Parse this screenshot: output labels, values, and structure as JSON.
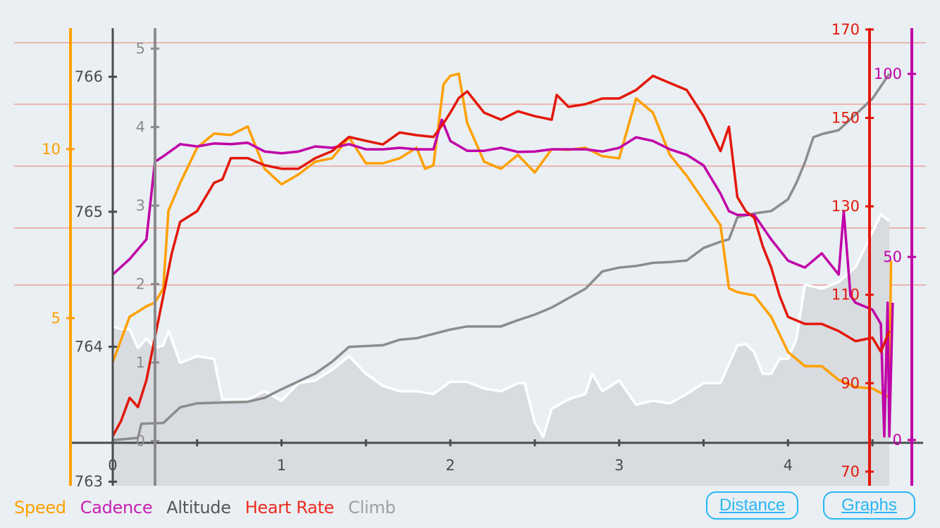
{
  "chart_data": {
    "type": "line",
    "title": "",
    "xlabel": "Distance",
    "xlim": [
      -0.25,
      4.8
    ],
    "x_ticks": [
      0,
      1,
      2,
      3,
      4
    ],
    "x_minor_step": 0.5,
    "grid": {
      "hr_zone_lines": [
        167,
        153.1,
        139.1,
        125.1,
        112.2
      ],
      "color": "#ec7a70"
    },
    "axes": {
      "speed": {
        "ylim": [
          0.04,
          13.58
        ],
        "ticks": [
          5,
          10
        ],
        "color": "#ffa000"
      },
      "altitude": {
        "ylim": [
          762.97,
          766.36
        ],
        "ticks": [
          763,
          764,
          765,
          766
        ],
        "color": "#4a4b50"
      },
      "climb": {
        "ylim": [
          -0.57,
          5.26
        ],
        "ticks": [
          0,
          1,
          2,
          3,
          4,
          5
        ],
        "color": "#8c8c8c"
      },
      "heart_rate": {
        "ylim": [
          66.8,
          170.3
        ],
        "ticks": [
          70,
          90,
          110,
          130,
          150,
          170
        ],
        "color": "#e3170a"
      },
      "cadence": {
        "ylim": [
          -12.5,
          112.5
        ],
        "ticks": [
          0,
          50,
          100
        ],
        "color": "#c000a8"
      }
    },
    "series": [
      {
        "name": "Altitude",
        "axis": "altitude",
        "style": "area",
        "color": "#ffffff",
        "fill": "#d8dbe0",
        "points": [
          [
            0,
            764.15
          ],
          [
            0.05,
            764.13
          ],
          [
            0.1,
            764.13
          ],
          [
            0.15,
            763.99
          ],
          [
            0.2,
            764.06
          ],
          [
            0.25,
            763.99
          ],
          [
            0.3,
            764.01
          ],
          [
            0.33,
            764.12
          ],
          [
            0.4,
            763.88
          ],
          [
            0.5,
            763.93
          ],
          [
            0.6,
            763.91
          ],
          [
            0.65,
            763.61
          ],
          [
            0.8,
            763.61
          ],
          [
            0.9,
            763.67
          ],
          [
            1.0,
            763.6
          ],
          [
            1.1,
            763.73
          ],
          [
            1.2,
            763.75
          ],
          [
            1.3,
            763.83
          ],
          [
            1.4,
            763.93
          ],
          [
            1.5,
            763.8
          ],
          [
            1.6,
            763.71
          ],
          [
            1.7,
            763.67
          ],
          [
            1.8,
            763.67
          ],
          [
            1.9,
            763.65
          ],
          [
            2.0,
            763.74
          ],
          [
            2.1,
            763.74
          ],
          [
            2.2,
            763.69
          ],
          [
            2.3,
            763.67
          ],
          [
            2.4,
            763.73
          ],
          [
            2.44,
            763.73
          ],
          [
            2.5,
            763.44
          ],
          [
            2.55,
            763.33
          ],
          [
            2.6,
            763.54
          ],
          [
            2.7,
            763.61
          ],
          [
            2.8,
            763.65
          ],
          [
            2.84,
            763.8
          ],
          [
            2.9,
            763.67
          ],
          [
            3.0,
            763.75
          ],
          [
            3.1,
            763.57
          ],
          [
            3.2,
            763.6
          ],
          [
            3.3,
            763.58
          ],
          [
            3.4,
            763.65
          ],
          [
            3.5,
            763.73
          ],
          [
            3.6,
            763.73
          ],
          [
            3.7,
            764.01
          ],
          [
            3.75,
            764.02
          ],
          [
            3.8,
            763.96
          ],
          [
            3.85,
            763.8
          ],
          [
            3.9,
            763.8
          ],
          [
            3.95,
            763.91
          ],
          [
            4.0,
            763.91
          ],
          [
            4.05,
            764.06
          ],
          [
            4.1,
            764.46
          ],
          [
            4.2,
            764.43
          ],
          [
            4.3,
            764.48
          ],
          [
            4.4,
            764.59
          ],
          [
            4.5,
            764.85
          ],
          [
            4.55,
            764.98
          ],
          [
            4.6,
            764.93
          ]
        ]
      },
      {
        "name": "Climb",
        "axis": "climb",
        "style": "line",
        "color": "#8c8c8c",
        "points": [
          [
            0,
            0.01
          ],
          [
            0.15,
            0.04
          ],
          [
            0.17,
            0.22
          ],
          [
            0.3,
            0.23
          ],
          [
            0.4,
            0.43
          ],
          [
            0.5,
            0.48
          ],
          [
            0.8,
            0.5
          ],
          [
            0.9,
            0.55
          ],
          [
            1.0,
            0.66
          ],
          [
            1.2,
            0.86
          ],
          [
            1.3,
            1.01
          ],
          [
            1.4,
            1.2
          ],
          [
            1.6,
            1.22
          ],
          [
            1.7,
            1.29
          ],
          [
            1.8,
            1.31
          ],
          [
            2.0,
            1.42
          ],
          [
            2.1,
            1.46
          ],
          [
            2.3,
            1.46
          ],
          [
            2.4,
            1.54
          ],
          [
            2.5,
            1.61
          ],
          [
            2.6,
            1.7
          ],
          [
            2.7,
            1.82
          ],
          [
            2.8,
            1.94
          ],
          [
            2.9,
            2.16
          ],
          [
            3.0,
            2.21
          ],
          [
            3.1,
            2.23
          ],
          [
            3.2,
            2.27
          ],
          [
            3.3,
            2.28
          ],
          [
            3.4,
            2.3
          ],
          [
            3.5,
            2.46
          ],
          [
            3.6,
            2.54
          ],
          [
            3.65,
            2.57
          ],
          [
            3.7,
            2.85
          ],
          [
            3.8,
            2.9
          ],
          [
            3.9,
            2.93
          ],
          [
            4.0,
            3.08
          ],
          [
            4.05,
            3.29
          ],
          [
            4.1,
            3.55
          ],
          [
            4.15,
            3.87
          ],
          [
            4.2,
            3.91
          ],
          [
            4.3,
            3.96
          ],
          [
            4.4,
            4.16
          ],
          [
            4.5,
            4.36
          ],
          [
            4.6,
            4.68
          ]
        ]
      },
      {
        "name": "Speed",
        "axis": "speed",
        "style": "line",
        "color": "#ffa000",
        "points": [
          [
            0,
            3.69
          ],
          [
            0.1,
            5.04
          ],
          [
            0.2,
            5.35
          ],
          [
            0.25,
            5.46
          ],
          [
            0.3,
            5.88
          ],
          [
            0.33,
            8.17
          ],
          [
            0.4,
            9.0
          ],
          [
            0.5,
            10.04
          ],
          [
            0.6,
            10.46
          ],
          [
            0.7,
            10.42
          ],
          [
            0.8,
            10.67
          ],
          [
            0.9,
            9.42
          ],
          [
            1.0,
            8.96
          ],
          [
            1.1,
            9.25
          ],
          [
            1.2,
            9.63
          ],
          [
            1.3,
            9.73
          ],
          [
            1.4,
            10.35
          ],
          [
            1.5,
            9.58
          ],
          [
            1.6,
            9.58
          ],
          [
            1.7,
            9.73
          ],
          [
            1.8,
            10.04
          ],
          [
            1.85,
            9.42
          ],
          [
            1.9,
            9.52
          ],
          [
            1.96,
            11.92
          ],
          [
            2.0,
            12.17
          ],
          [
            2.05,
            12.23
          ],
          [
            2.1,
            10.77
          ],
          [
            2.2,
            9.63
          ],
          [
            2.3,
            9.42
          ],
          [
            2.4,
            9.83
          ],
          [
            2.5,
            9.31
          ],
          [
            2.6,
            10.0
          ],
          [
            2.7,
            9.98
          ],
          [
            2.8,
            10.04
          ],
          [
            2.9,
            9.79
          ],
          [
            3.0,
            9.73
          ],
          [
            3.1,
            11.5
          ],
          [
            3.2,
            11.08
          ],
          [
            3.3,
            9.83
          ],
          [
            3.4,
            9.21
          ],
          [
            3.5,
            8.48
          ],
          [
            3.6,
            7.75
          ],
          [
            3.65,
            5.88
          ],
          [
            3.7,
            5.77
          ],
          [
            3.8,
            5.67
          ],
          [
            3.9,
            5.04
          ],
          [
            4.0,
            4.0
          ],
          [
            4.1,
            3.58
          ],
          [
            4.2,
            3.58
          ],
          [
            4.3,
            3.17
          ],
          [
            4.4,
            2.96
          ],
          [
            4.5,
            2.92
          ],
          [
            4.6,
            2.65
          ],
          [
            4.61,
            6.7
          ]
        ]
      },
      {
        "name": "Cadence",
        "axis": "cadence",
        "style": "line",
        "color": "#c000a8",
        "points": [
          [
            0,
            45.2
          ],
          [
            0.1,
            49.4
          ],
          [
            0.2,
            54.8
          ],
          [
            0.25,
            76
          ],
          [
            0.3,
            77.5
          ],
          [
            0.4,
            80.8
          ],
          [
            0.5,
            80.2
          ],
          [
            0.6,
            81
          ],
          [
            0.7,
            80.8
          ],
          [
            0.8,
            81.2
          ],
          [
            0.9,
            78.8
          ],
          [
            1.0,
            78.3
          ],
          [
            1.1,
            78.8
          ],
          [
            1.2,
            80.2
          ],
          [
            1.3,
            79.8
          ],
          [
            1.4,
            80.8
          ],
          [
            1.5,
            79.4
          ],
          [
            1.6,
            79.4
          ],
          [
            1.7,
            79.8
          ],
          [
            1.8,
            79.4
          ],
          [
            1.9,
            79.4
          ],
          [
            1.95,
            87.5
          ],
          [
            2.0,
            81.7
          ],
          [
            2.1,
            79
          ],
          [
            2.2,
            79
          ],
          [
            2.3,
            79.8
          ],
          [
            2.4,
            78.7
          ],
          [
            2.5,
            78.8
          ],
          [
            2.6,
            79.4
          ],
          [
            2.7,
            79.4
          ],
          [
            2.8,
            79.4
          ],
          [
            2.9,
            78.8
          ],
          [
            3.0,
            79.8
          ],
          [
            3.1,
            82.7
          ],
          [
            3.2,
            81.7
          ],
          [
            3.3,
            79.4
          ],
          [
            3.4,
            77.9
          ],
          [
            3.5,
            75
          ],
          [
            3.6,
            67.3
          ],
          [
            3.65,
            62.5
          ],
          [
            3.7,
            61.5
          ],
          [
            3.8,
            61.5
          ],
          [
            3.9,
            54.8
          ],
          [
            4.0,
            49
          ],
          [
            4.1,
            47.1
          ],
          [
            4.2,
            51
          ],
          [
            4.3,
            45.2
          ],
          [
            4.33,
            62.5
          ],
          [
            4.37,
            39.4
          ],
          [
            4.4,
            37.5
          ],
          [
            4.5,
            35.6
          ],
          [
            4.55,
            31.7
          ],
          [
            4.57,
            1
          ],
          [
            4.59,
            37.5
          ],
          [
            4.6,
            1
          ],
          [
            4.62,
            37.5
          ]
        ]
      },
      {
        "name": "Heart Rate",
        "axis": "heart_rate",
        "style": "line",
        "color": "#e3170a",
        "points": [
          [
            0,
            78
          ],
          [
            0.05,
            81.5
          ],
          [
            0.1,
            86.7
          ],
          [
            0.15,
            84.6
          ],
          [
            0.2,
            90.7
          ],
          [
            0.25,
            100.3
          ],
          [
            0.3,
            109.8
          ],
          [
            0.35,
            119.4
          ],
          [
            0.4,
            126.5
          ],
          [
            0.5,
            128.9
          ],
          [
            0.6,
            135.3
          ],
          [
            0.65,
            136.1
          ],
          [
            0.7,
            140.9
          ],
          [
            0.8,
            140.9
          ],
          [
            0.9,
            139.3
          ],
          [
            1.0,
            138.5
          ],
          [
            1.1,
            138.5
          ],
          [
            1.2,
            140.9
          ],
          [
            1.3,
            142.5
          ],
          [
            1.4,
            145.7
          ],
          [
            1.5,
            144.8
          ],
          [
            1.6,
            144
          ],
          [
            1.7,
            146.7
          ],
          [
            1.8,
            146.1
          ],
          [
            1.9,
            145.7
          ],
          [
            1.96,
            148.8
          ],
          [
            2.0,
            151.2
          ],
          [
            2.05,
            154.5
          ],
          [
            2.1,
            156
          ],
          [
            2.2,
            151.2
          ],
          [
            2.3,
            149.6
          ],
          [
            2.4,
            151.5
          ],
          [
            2.5,
            150.4
          ],
          [
            2.6,
            149.6
          ],
          [
            2.63,
            155.2
          ],
          [
            2.7,
            152.5
          ],
          [
            2.8,
            153.1
          ],
          [
            2.9,
            154.4
          ],
          [
            3.0,
            154.4
          ],
          [
            3.1,
            156.3
          ],
          [
            3.2,
            159.5
          ],
          [
            3.3,
            157.9
          ],
          [
            3.4,
            156.3
          ],
          [
            3.5,
            150.4
          ],
          [
            3.6,
            142.5
          ],
          [
            3.65,
            148
          ],
          [
            3.7,
            132.1
          ],
          [
            3.75,
            128.9
          ],
          [
            3.8,
            127.4
          ],
          [
            3.85,
            121
          ],
          [
            3.9,
            116.2
          ],
          [
            3.95,
            109.8
          ],
          [
            4.0,
            105
          ],
          [
            4.1,
            103.4
          ],
          [
            4.2,
            103.4
          ],
          [
            4.3,
            101.8
          ],
          [
            4.4,
            99.5
          ],
          [
            4.5,
            100.3
          ],
          [
            4.55,
            97.1
          ],
          [
            4.6,
            101.8
          ]
        ]
      }
    ]
  },
  "legend": [
    {
      "label": "Speed",
      "color": "#ffa000"
    },
    {
      "label": "Cadence",
      "color": "#c81fb4"
    },
    {
      "label": "Altitude",
      "color": "#55565c"
    },
    {
      "label": "Heart Rate",
      "color": "#ee2b22"
    },
    {
      "label": "Climb",
      "color": "#a0a0a0"
    }
  ],
  "buttons": {
    "distance": "Distance",
    "graphs": "Graphs"
  }
}
